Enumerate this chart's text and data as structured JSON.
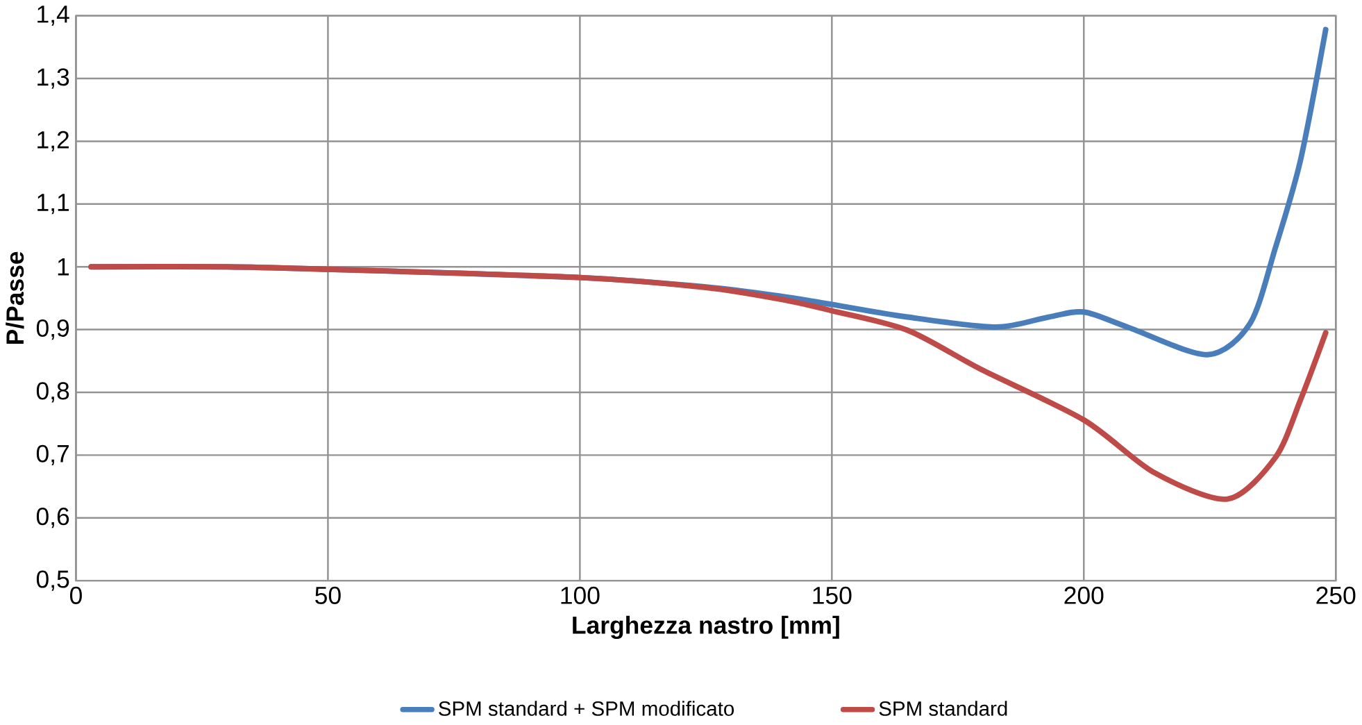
{
  "chart_data": {
    "type": "line",
    "xlabel": "Larghezza nastro [mm]",
    "ylabel": "P/Passe",
    "xlim": [
      0,
      250
    ],
    "xticks": [
      0,
      50,
      100,
      150,
      200,
      250
    ],
    "ylim": [
      0.5,
      1.4
    ],
    "yticks": [
      {
        "value": 0.5,
        "label": "0,5"
      },
      {
        "value": 0.6,
        "label": "0,6"
      },
      {
        "value": 0.7,
        "label": "0,7"
      },
      {
        "value": 0.8,
        "label": "0,8"
      },
      {
        "value": 0.9,
        "label": "0,9"
      },
      {
        "value": 1,
        "label": "1"
      },
      {
        "value": 1.1,
        "label": "1,1"
      },
      {
        "value": 1.2,
        "label": "1,2"
      },
      {
        "value": 1.3,
        "label": "1,3"
      },
      {
        "value": 1.4,
        "label": "1,4"
      }
    ],
    "grid": true,
    "legend": "bottom",
    "marker": "none",
    "line_style": "solid",
    "series": [
      {
        "name": "SPM standard + SPM modificato",
        "color": "#4a7ebb",
        "x": [
          3,
          30,
          50,
          100,
          125,
          140,
          150,
          165,
          182.5,
          193,
          200,
          209,
          224.5,
          233,
          238,
          243,
          248
        ],
        "values": [
          1.0,
          1.0,
          0.996,
          0.983,
          0.968,
          0.953,
          0.94,
          0.92,
          0.904,
          0.92,
          0.928,
          0.903,
          0.86,
          0.91,
          1.03,
          1.17,
          1.378
        ]
      },
      {
        "name": "SPM standard",
        "color": "#be4b48",
        "x": [
          3,
          30,
          50,
          100,
          125,
          140,
          150,
          165,
          179.5,
          200,
          214,
          228.5,
          238,
          243,
          248
        ],
        "values": [
          1.0,
          1.0,
          0.996,
          0.983,
          0.967,
          0.948,
          0.93,
          0.899,
          0.837,
          0.756,
          0.672,
          0.63,
          0.696,
          0.788,
          0.895
        ]
      }
    ]
  }
}
